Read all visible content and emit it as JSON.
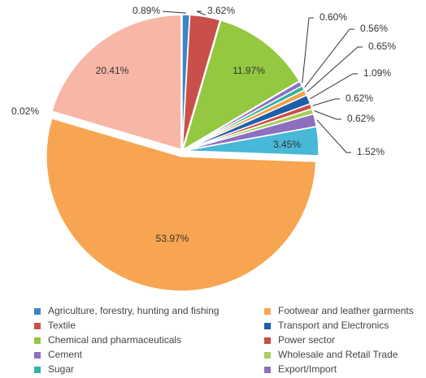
{
  "chart_data": {
    "type": "pie",
    "slices": [
      {
        "value": 0.89,
        "value_label": "0.89%",
        "color": "#3d85c6"
      },
      {
        "value": 3.62,
        "value_label": "3.62%",
        "color": "#c9504a"
      },
      {
        "value": 11.97,
        "value_label": "11.97%",
        "color": "#94c840"
      },
      {
        "value": 0.6,
        "value_label": "0.60%",
        "color": "#8e6fbf"
      },
      {
        "value": 0.56,
        "value_label": "0.56%",
        "color": "#2db5a0"
      },
      {
        "value": 0.65,
        "value_label": "0.65%",
        "color": "#f4a04b"
      },
      {
        "value": 1.09,
        "value_label": "1.09%",
        "color": "#1d5ea8"
      },
      {
        "value": 0.62,
        "value_label": "0.62%",
        "color": "#c9504a"
      },
      {
        "value": 0.62,
        "value_label": "0.62%",
        "color": "#a5cf5a"
      },
      {
        "value": 1.52,
        "value_label": "1.52%",
        "color": "#8e6fbf"
      },
      {
        "value": 3.45,
        "value_label": "3.45%",
        "color": "#48b8d8"
      },
      {
        "value": 53.97,
        "value_label": "53.97%",
        "color": "#f7a550"
      },
      {
        "value": 0.02,
        "value_label": "0.02%",
        "color": "#c9504a"
      },
      {
        "value": 20.41,
        "value_label": "20.41%",
        "color": "#f8b6a6"
      }
    ],
    "legend": [
      {
        "name": "Agriculture, forestry, hunting and fishing",
        "color": "#3d85c6"
      },
      {
        "name": "Footwear and leather garments",
        "color": "#f7a550"
      },
      {
        "name": "Textile",
        "color": "#c9504a"
      },
      {
        "name": "Transport and Electronics",
        "color": "#1d5ea8"
      },
      {
        "name": "Chemical and pharmaceuticals",
        "color": "#94c840"
      },
      {
        "name": "Power sector",
        "color": "#c9504a"
      },
      {
        "name": "Cement",
        "color": "#8e6fbf"
      },
      {
        "name": "Wholesale and Retail Trade",
        "color": "#a5cf5a"
      },
      {
        "name": "Sugar",
        "color": "#2db5a0"
      },
      {
        "name": "Export/Import",
        "color": "#8e6fbf"
      }
    ]
  }
}
